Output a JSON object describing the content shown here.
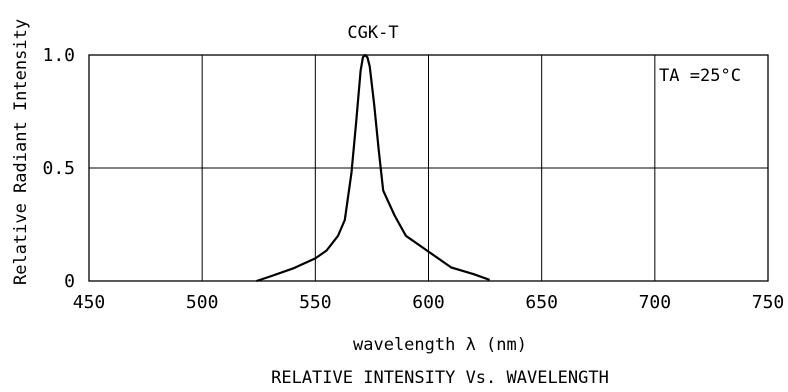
{
  "chart_data": {
    "type": "line",
    "title": "CGK-T",
    "subtitle": "RELATIVE INTENSITY Vs. WAVELENGTH",
    "xlabel": "wavelength λ (nm)",
    "ylabel": "Relative Radiant Intensity",
    "annotation": "TA =25°C",
    "xlim": [
      450,
      750
    ],
    "ylim": [
      0,
      1.0
    ],
    "x_ticks": [
      "450",
      "500",
      "550",
      "600",
      "650",
      "700",
      "750"
    ],
    "y_ticks": [
      "0",
      "0.5",
      "1.0"
    ],
    "grid": true,
    "series": [
      {
        "x": [
          524,
          530,
          540,
          550,
          555,
          560,
          563,
          566,
          568,
          570,
          571,
          572,
          573,
          574,
          576,
          578,
          580,
          585,
          590,
          600,
          610,
          620,
          627
        ],
        "y": [
          0.0,
          0.02,
          0.055,
          0.1,
          0.135,
          0.2,
          0.27,
          0.48,
          0.7,
          0.93,
          0.99,
          1.0,
          0.99,
          0.95,
          0.78,
          0.58,
          0.4,
          0.29,
          0.2,
          0.13,
          0.06,
          0.03,
          0.005
        ]
      }
    ]
  }
}
